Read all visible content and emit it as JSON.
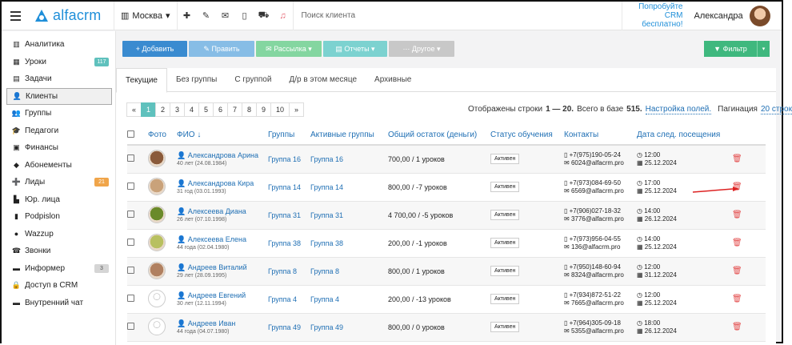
{
  "app": {
    "logo_text": "alfacrm",
    "branch": "Москва",
    "search_placeholder": "Поиск клиента",
    "promo_line1": "Попробуйте",
    "promo_line2": "CRM бесплатно!",
    "user_name": "Александра"
  },
  "topbar_icons": [
    "plus-icon",
    "wrench-icon",
    "mail-icon",
    "phone-icon",
    "cart-icon",
    "bell-icon"
  ],
  "sidebar": {
    "items": [
      {
        "label": "Аналитика",
        "icon": "chart-icon",
        "glyph": "▥"
      },
      {
        "label": "Уроки",
        "icon": "calendar-icon",
        "glyph": "▦",
        "badge": "117",
        "badge_color": "teal"
      },
      {
        "label": "Задачи",
        "icon": "tasks-icon",
        "glyph": "▤"
      },
      {
        "label": "Клиенты",
        "icon": "user-icon",
        "glyph": "👤",
        "active": true
      },
      {
        "label": "Группы",
        "icon": "users-icon",
        "glyph": "👥"
      },
      {
        "label": "Педагоги",
        "icon": "teacher-icon",
        "glyph": "🎓"
      },
      {
        "label": "Финансы",
        "icon": "money-icon",
        "glyph": "▣"
      },
      {
        "label": "Абонементы",
        "icon": "tag-icon",
        "glyph": "◆"
      },
      {
        "label": "Лиды",
        "icon": "lead-icon",
        "glyph": "➕",
        "badge": "21",
        "badge_color": "orange"
      },
      {
        "label": "Юр. лица",
        "icon": "bank-icon",
        "glyph": "▙"
      },
      {
        "label": "Podpislon",
        "icon": "document-icon",
        "glyph": "▮"
      },
      {
        "label": "Wazzup",
        "icon": "whatsapp-icon",
        "glyph": "●"
      },
      {
        "label": "Звонки",
        "icon": "phone-icon",
        "glyph": "☎"
      },
      {
        "label": "Информер",
        "icon": "message-icon",
        "glyph": "▬",
        "badge": "3",
        "badge_color": "gray"
      },
      {
        "label": "Доступ в CRM",
        "icon": "lock-icon",
        "glyph": "🔒"
      },
      {
        "label": "Внутренний чат",
        "icon": "chat-icon",
        "glyph": "▬"
      }
    ]
  },
  "toolbar": {
    "add": "+ Добавить",
    "edit": "✎ Править",
    "mailing": "✉ Рассылка ▾",
    "reports": "▤ Отчеты ▾",
    "other": "··· Другое ▾",
    "filter": "▼ Фильтр",
    "filter_caret": "▾"
  },
  "tabs": [
    "Текущие",
    "Без группы",
    "С группой",
    "Д/р в этом месяце",
    "Архивные"
  ],
  "pagination": {
    "prev": "«",
    "pages": [
      "1",
      "2",
      "3",
      "4",
      "5",
      "6",
      "7",
      "8",
      "9",
      "10"
    ],
    "next": "»",
    "current": "1"
  },
  "summary": {
    "shown_prefix": "Отображены строки",
    "shown_range": "1 — 20.",
    "total_prefix": "Всего в базе",
    "total": "515.",
    "columns_link": "Настройка полей.",
    "pagination_label": "Пагинация",
    "pagination_link": "20 строк"
  },
  "table": {
    "headers": [
      "Фото",
      "ФИО ↓",
      "Группы",
      "Активные группы",
      "Общий остаток (деньги)",
      "Статус обучения",
      "Контакты",
      "Дата след. посещения"
    ],
    "rows": [
      {
        "name": "Александрова Арина",
        "age": "40 лет (24.08.1984)",
        "group": "Группа 16",
        "active_group": "Группа 16",
        "balance": "700,00 / 1 уроков",
        "status": "Активен",
        "phone": "+7(975)190-05-24",
        "email": "6024@alfacrm.pro",
        "time": "12:00",
        "date": "25.12.2024",
        "avatar": "#8a5a3a"
      },
      {
        "name": "Александрова Кира",
        "age": "31 год (03.01.1993)",
        "group": "Группа 14",
        "active_group": "Группа 14",
        "balance": "800,00 / -7 уроков",
        "status": "Активен",
        "phone": "+7(973)084-69-50",
        "email": "6569@alfacrm.pro",
        "time": "17:00",
        "date": "25.12.2024",
        "avatar": "#c9a27a"
      },
      {
        "name": "Алексеева Диана",
        "age": "26 лет (07.10.1998)",
        "group": "Группа 31",
        "active_group": "Группа 31",
        "balance": "4 700,00 / -5 уроков",
        "status": "Активен",
        "phone": "+7(906)027-18-32",
        "email": "3776@alfacrm.pro",
        "time": "14:00",
        "date": "26.12.2024",
        "avatar": "#6a8a2a"
      },
      {
        "name": "Алексеева Елена",
        "age": "44 года (02.04.1980)",
        "group": "Группа 38",
        "active_group": "Группа 38",
        "balance": "200,00 / -1 уроков",
        "status": "Активен",
        "phone": "+7(973)956-04-55",
        "email": "136@alfacrm.pro",
        "time": "14:00",
        "date": "25.12.2024",
        "avatar": "#b8c060"
      },
      {
        "name": "Андреев Виталий",
        "age": "29 лет (28.09.1995)",
        "group": "Группа 8",
        "active_group": "Группа 8",
        "balance": "800,00 / 1 уроков",
        "status": "Активен",
        "phone": "+7(950)148-60-94",
        "email": "8324@alfacrm.pro",
        "time": "12:00",
        "date": "31.12.2024",
        "avatar": "#b08060"
      },
      {
        "name": "Андреев Евгений",
        "age": "30 лет (12.11.1994)",
        "group": "Группа 4",
        "active_group": "Группа 4",
        "balance": "200,00 / -13 уроков",
        "status": "Активен",
        "phone": "+7(934)872-51-22",
        "email": "7665@alfacrm.pro",
        "time": "12:00",
        "date": "25.12.2024",
        "avatar": ""
      },
      {
        "name": "Андреев Иван",
        "age": "44 года (04.07.1980)",
        "group": "Группа 49",
        "active_group": "Группа 49",
        "balance": "800,00 / 0 уроков",
        "status": "Активен",
        "phone": "+7(964)305-09-18",
        "email": "5355@alfacrm.pro",
        "time": "18:00",
        "date": "26.12.2024",
        "avatar": ""
      }
    ]
  },
  "colors": {
    "primary": "#3a8bd0",
    "accent_teal": "#5fc1bd",
    "filter_green": "#3fb87e",
    "delete_red": "#e34a4a",
    "link_blue": "#1f6fb4"
  }
}
